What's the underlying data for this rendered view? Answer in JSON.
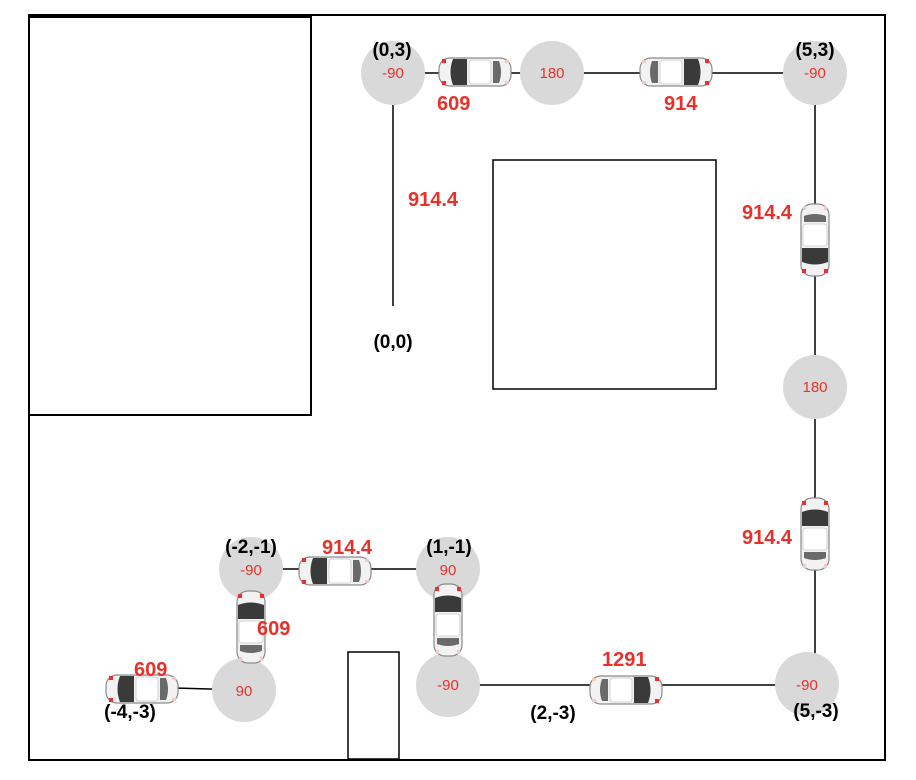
{
  "colors": {
    "node_fill": "#d9d9d9",
    "distance_text": "#e8312a",
    "line": "#000000",
    "car_body": "#f2f2f2",
    "car_glass": "#3a3a3a"
  },
  "coordinates": {
    "origin": "(0,0)",
    "p_0_3": "(0,3)",
    "p_5_3": "(5,3)",
    "p_5_m3": "(5,-3)",
    "p_2_m3": "(2,-3)",
    "p_1_m1": "(1,-1)",
    "p_m2_m1": "(-2,-1)",
    "p_m4_m3": "(-4,-3)"
  },
  "nodes": {
    "n_0_3": "-90",
    "n_top_mid": "180",
    "n_5_3": "-90",
    "n_right_mid": "180",
    "n_5_m3": "-90",
    "n_lower_mid": "-90",
    "n_1_m1": "90",
    "n_m2_m1": "-90",
    "n_bottom_left": "90"
  },
  "distances": {
    "d_left_vertical": "914.4",
    "d_top_left": "609",
    "d_top_right": "914",
    "d_right_upper": "914.4",
    "d_right_lower": "914.4",
    "d_bottom": "1291",
    "d_middle": "914.4",
    "d_left_small": "609",
    "d_bottom_left": "609"
  },
  "icons": {
    "car": "car-icon"
  }
}
